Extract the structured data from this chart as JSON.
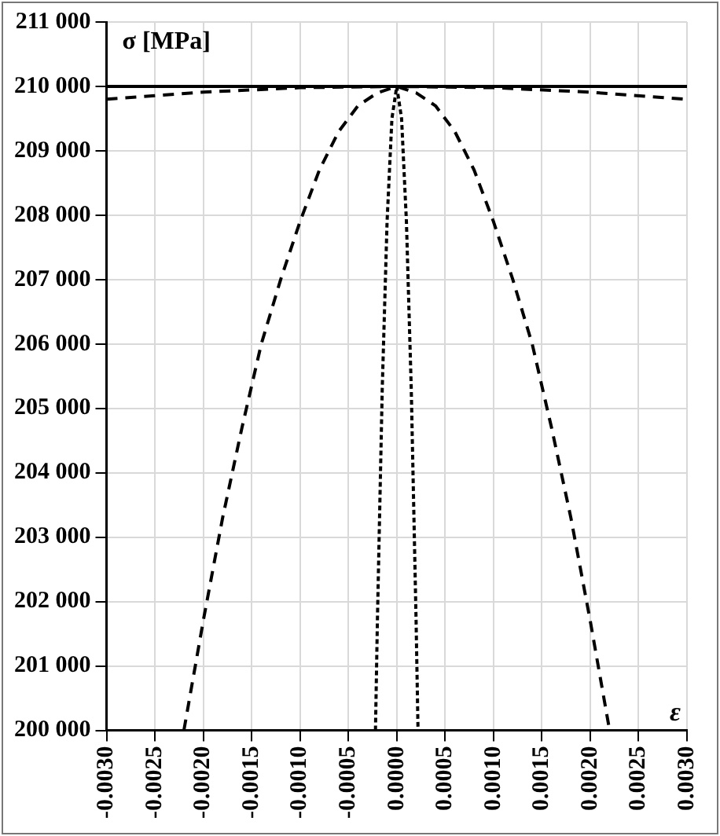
{
  "chart_data": {
    "type": "line",
    "xlabel": "ε",
    "ylabel": "σ [MPa]",
    "xlim": [
      -0.003,
      0.003
    ],
    "ylim": [
      200000,
      211000
    ],
    "xticks": [
      {
        "value": -0.003,
        "label": "-0.0030"
      },
      {
        "value": -0.0025,
        "label": "-0.0025"
      },
      {
        "value": -0.002,
        "label": "-0.0020"
      },
      {
        "value": -0.0015,
        "label": "-0.0015"
      },
      {
        "value": -0.001,
        "label": "-0.0010"
      },
      {
        "value": -0.0005,
        "label": "-0.0005"
      },
      {
        "value": 0,
        "label": "0.0000"
      },
      {
        "value": 0.0005,
        "label": "0.0005"
      },
      {
        "value": 0.001,
        "label": "0.0010"
      },
      {
        "value": 0.0015,
        "label": "0.0015"
      },
      {
        "value": 0.002,
        "label": "0.0020"
      },
      {
        "value": 0.0025,
        "label": "0.0025"
      },
      {
        "value": 0.003,
        "label": "0.0030"
      }
    ],
    "yticks": [
      {
        "value": 200000,
        "label": "200 000"
      },
      {
        "value": 201000,
        "label": "201 000"
      },
      {
        "value": 202000,
        "label": "202 000"
      },
      {
        "value": 203000,
        "label": "203 000"
      },
      {
        "value": 204000,
        "label": "204 000"
      },
      {
        "value": 205000,
        "label": "205 000"
      },
      {
        "value": 206000,
        "label": "206 000"
      },
      {
        "value": 207000,
        "label": "207 000"
      },
      {
        "value": 208000,
        "label": "208 000"
      },
      {
        "value": 209000,
        "label": "209 000"
      },
      {
        "value": 210000,
        "label": "210 000"
      },
      {
        "value": 211000,
        "label": "211 000"
      }
    ],
    "grid": true,
    "marker": "none",
    "series": [
      {
        "color": "#000000",
        "line_style": "solid",
        "x": [
          -0.003,
          0.003
        ],
        "values": [
          210000,
          210000
        ]
      },
      {
        "color": "#000000",
        "line_style": "dashed",
        "x": [
          -0.003,
          -0.002,
          -0.001,
          0,
          0.001,
          0.002,
          0.003
        ],
        "values": [
          209800,
          209910,
          209980,
          210000,
          209980,
          209910,
          209800
        ]
      },
      {
        "color": "#000000",
        "line_style": "dashed",
        "x": [
          -0.0022,
          -0.002,
          -0.0018,
          -0.0016,
          -0.0014,
          -0.0012,
          -0.001,
          -0.0008,
          -0.0006,
          -0.0004,
          -0.0002,
          0,
          0.0002,
          0.0004,
          0.0006,
          0.0008,
          0.001,
          0.0012,
          0.0014,
          0.0016,
          0.0018,
          0.002,
          0.0022
        ],
        "values": [
          200000,
          201700,
          203300,
          204700,
          206000,
          207000,
          207900,
          208700,
          209300,
          209700,
          209900,
          210000,
          209900,
          209700,
          209300,
          208700,
          207900,
          207000,
          206000,
          204700,
          203300,
          201700,
          200000
        ]
      },
      {
        "color": "#000000",
        "line_style": "dotted",
        "x": [
          -0.00022,
          -0.0002,
          -0.00015,
          -0.0001,
          -5e-05,
          0,
          5e-05,
          0.0001,
          0.00015,
          0.0002,
          0.00022
        ],
        "values": [
          200000,
          201700,
          205300,
          207900,
          209500,
          210000,
          209500,
          207900,
          205300,
          201700,
          200000
        ]
      }
    ]
  }
}
